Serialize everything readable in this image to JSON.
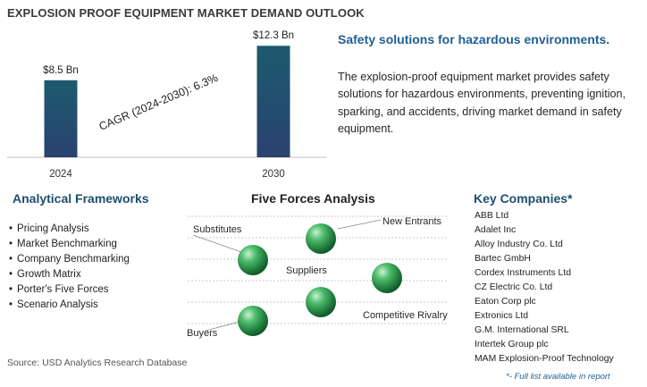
{
  "page_title": "EXPLOSION PROOF EQUIPMENT MARKET DEMAND OUTLOOK",
  "chart_data": {
    "type": "bar",
    "categories": [
      "2024",
      "2030"
    ],
    "values": [
      8.5,
      12.3
    ],
    "value_labels": [
      "$8.5 Bn",
      "$12.3 Bn"
    ],
    "annotation": "CAGR (2024-2030):  6.3%",
    "title": "",
    "xlabel": "",
    "ylabel": "",
    "ylim": [
      0,
      14
    ],
    "grid": false,
    "colors": {
      "bar_top": "#1c5a6e",
      "bar_bottom": "#2a4270"
    }
  },
  "headline": "Safety solutions for hazardous environments.",
  "description": "The explosion-proof equipment market provides safety solutions for hazardous environments, preventing ignition, sparking, and accidents, driving market demand in safety equipment.",
  "frameworks": {
    "heading": "Analytical Frameworks",
    "items": [
      "Pricing Analysis",
      "Market Benchmarking",
      "Company Benchmarking",
      "Growth Matrix",
      "Porter's Five Forces",
      "Scenario Analysis"
    ]
  },
  "five_forces": {
    "heading": "Five Forces Analysis",
    "labels": {
      "new_entrants": "New Entrants",
      "substitutes": "Substitutes",
      "suppliers": "Suppliers",
      "competitive_rivalry": "Competitive Rivalry",
      "buyers": "Buyers"
    },
    "sphere_color": "#2e9a4f"
  },
  "companies": {
    "heading": "Key Companies*",
    "items": [
      "ABB Ltd",
      "Adalet Inc",
      "Alloy Industry Co. Ltd",
      "Bartec GmbH",
      "Cordex Instruments Ltd",
      "CZ Electric Co. Ltd",
      "Eaton Corp plc",
      "Extronics Ltd",
      "G.M. International SRL",
      "Intertek Group plc",
      "MAM Explosion-Proof Technology"
    ],
    "footnote": "*- Full list available in report"
  },
  "source": "Source: USD Analytics Research Database"
}
